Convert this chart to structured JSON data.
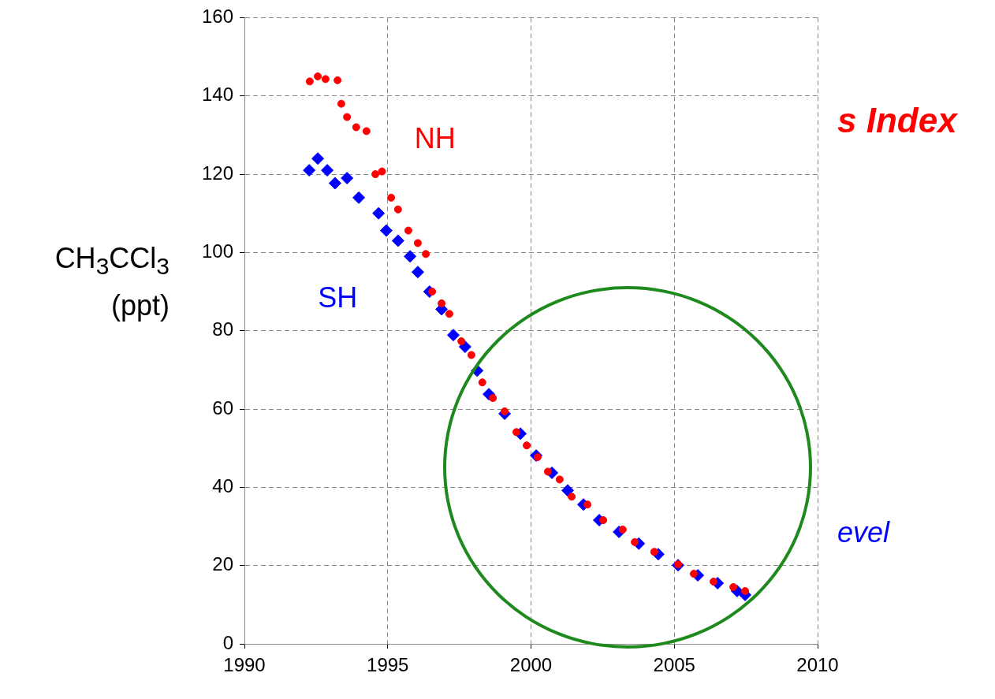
{
  "chart_data": {
    "type": "scatter",
    "ylabel": "CH$_{3}$CCl$_{3}$ (ppt)",
    "xlim": [
      1990,
      2010
    ],
    "xticks": [
      1990,
      1995,
      2000,
      2005,
      2010
    ],
    "ylim": [
      0,
      160
    ],
    "yticks": [
      0,
      20,
      40,
      60,
      80,
      100,
      120,
      140,
      160
    ],
    "grid": true,
    "legend": false,
    "annotations": [
      "s Index",
      "evel"
    ],
    "series": [
      {
        "name": "NH",
        "color": "#ff0000",
        "marker": "circle",
        "x": [
          1992.28,
          1992.56,
          1992.83,
          1993.25,
          1993.38,
          1993.58,
          1993.9,
          1994.26,
          1994.57,
          1994.8,
          1995.12,
          1995.36,
          1995.72,
          1996.05,
          1996.33,
          1996.55,
          1996.88,
          1997.15,
          1997.57,
          1997.92,
          1998.3,
          1998.67,
          1999.08,
          1999.49,
          1999.85,
          2000.23,
          2000.59,
          2001.0,
          2001.42,
          2001.97,
          2002.52,
          2003.2,
          2003.62,
          2004.3,
          2005.13,
          2005.68,
          2006.37,
          2007.06,
          2007.47
        ],
        "values": [
          143.7,
          145,
          144.3,
          144,
          138,
          134.6,
          132,
          131,
          120,
          120.7,
          114,
          111,
          105.6,
          102.4,
          99.6,
          90,
          87,
          84.3,
          77.3,
          73.8,
          66.8,
          62.8,
          59.4,
          54.1,
          50.7,
          47.7,
          44,
          42,
          37.6,
          35.6,
          31.6,
          29.2,
          26,
          23.5,
          20.3,
          17.9,
          15.9,
          14.5,
          13.5
        ]
      },
      {
        "name": "SH",
        "color": "#0000ff",
        "marker": "diamond",
        "x": [
          1992.26,
          1992.56,
          1992.89,
          1993.16,
          1993.58,
          1993.99,
          1994.68,
          1994.95,
          1995.36,
          1995.78,
          1996.05,
          1996.46,
          1996.88,
          1997.29,
          1997.7,
          1998.12,
          1998.53,
          1999.08,
          1999.63,
          2000.18,
          2000.73,
          2001.28,
          2001.83,
          2002.38,
          2003.07,
          2003.76,
          2004.44,
          2005.13,
          2005.82,
          2006.51,
          2007.19,
          2007.47
        ],
        "values": [
          121,
          124,
          121,
          117.7,
          119,
          114,
          110,
          105.6,
          103,
          99,
          95,
          90,
          85.5,
          78.9,
          75.9,
          69.8,
          63.8,
          58.8,
          53.7,
          48.1,
          43.7,
          39.2,
          35.6,
          31.6,
          28.6,
          25.6,
          22.9,
          20.1,
          17.5,
          15.5,
          13.5,
          12.5
        ]
      }
    ]
  }
}
